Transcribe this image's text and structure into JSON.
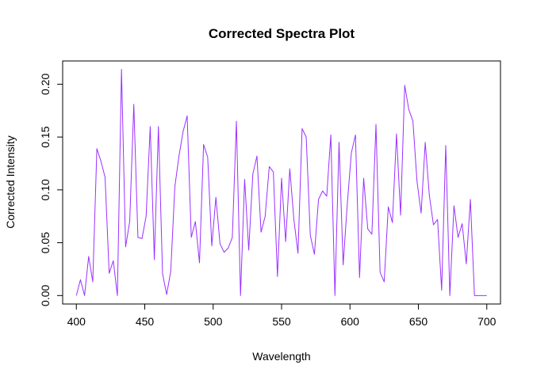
{
  "chart_data": {
    "type": "line",
    "title": "Corrected Spectra Plot",
    "xlabel": "Wavelength",
    "ylabel": "Corrected Intensity",
    "xlim": [
      390,
      710
    ],
    "ylim": [
      -0.008,
      0.222
    ],
    "xticks": [
      400,
      450,
      500,
      550,
      600,
      650,
      700
    ],
    "yticks": [
      0.0,
      0.05,
      0.1,
      0.15,
      0.2
    ],
    "ytick_labels": [
      "0.00",
      "0.05",
      "0.10",
      "0.15",
      "0.20"
    ],
    "grid": false,
    "series": [
      {
        "color": "#9b30ff",
        "x": [
          400,
          403,
          406,
          409,
          412,
          415,
          418,
          421,
          424,
          427,
          430,
          433,
          436,
          439,
          442,
          445,
          448,
          451,
          454,
          457,
          460,
          463,
          466,
          469,
          472,
          475,
          478,
          481,
          484,
          487,
          490,
          493,
          496,
          499,
          502,
          505,
          508,
          511,
          514,
          517,
          520,
          523,
          526,
          529,
          532,
          535,
          538,
          541,
          544,
          547,
          550,
          553,
          556,
          559,
          562,
          565,
          568,
          571,
          574,
          577,
          580,
          583,
          586,
          589,
          592,
          595,
          598,
          601,
          604,
          607,
          610,
          613,
          616,
          619,
          622,
          625,
          628,
          631,
          634,
          637,
          640,
          643,
          646,
          649,
          652,
          655,
          658,
          661,
          664,
          667,
          670,
          673,
          676,
          679,
          682,
          685,
          688,
          691,
          694,
          697,
          700
        ],
        "y": [
          0.0,
          0.015,
          0.0,
          0.037,
          0.013,
          0.139,
          0.127,
          0.112,
          0.021,
          0.033,
          0.0,
          0.214,
          0.046,
          0.07,
          0.181,
          0.055,
          0.054,
          0.075,
          0.16,
          0.034,
          0.16,
          0.021,
          0.001,
          0.023,
          0.103,
          0.132,
          0.155,
          0.17,
          0.055,
          0.07,
          0.031,
          0.143,
          0.131,
          0.047,
          0.093,
          0.049,
          0.041,
          0.045,
          0.055,
          0.165,
          0.0,
          0.11,
          0.043,
          0.115,
          0.132,
          0.06,
          0.075,
          0.122,
          0.117,
          0.018,
          0.111,
          0.051,
          0.12,
          0.072,
          0.04,
          0.158,
          0.15,
          0.057,
          0.039,
          0.091,
          0.099,
          0.094,
          0.152,
          0.0,
          0.145,
          0.029,
          0.086,
          0.135,
          0.152,
          0.017,
          0.111,
          0.063,
          0.058,
          0.162,
          0.022,
          0.013,
          0.084,
          0.069,
          0.153,
          0.076,
          0.199,
          0.176,
          0.165,
          0.108,
          0.078,
          0.145,
          0.095,
          0.067,
          0.072,
          0.005,
          0.142,
          0.0,
          0.085,
          0.055,
          0.068,
          0.03,
          0.091,
          0.0,
          0.0,
          0.0,
          0.0
        ]
      }
    ]
  }
}
